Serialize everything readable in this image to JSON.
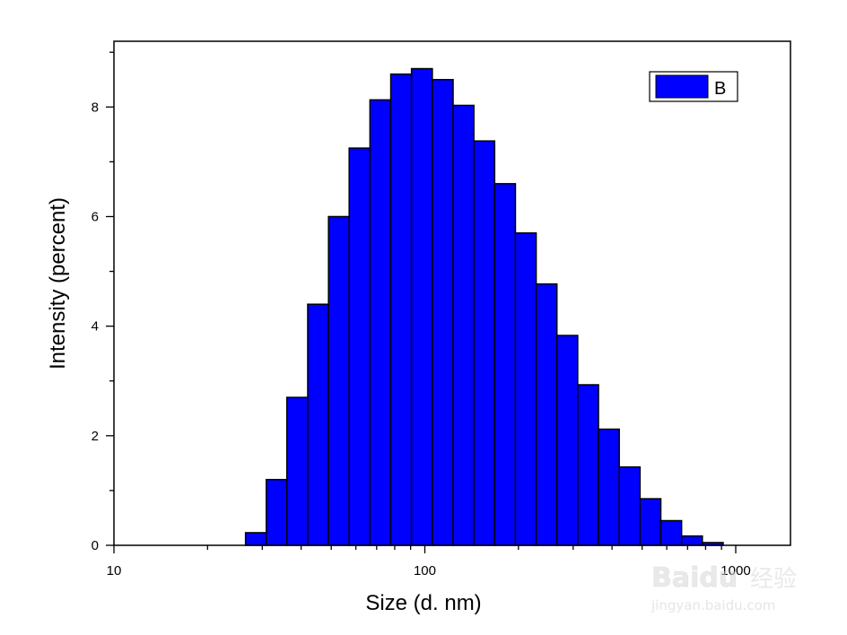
{
  "chart_data": {
    "type": "bar",
    "xlabel": "Size (d. nm)",
    "ylabel": "Intensity (percent)",
    "x_scale": "log",
    "xlim": [
      10,
      1500
    ],
    "ylim": [
      0,
      9.2
    ],
    "x_ticks": [
      10,
      100,
      1000
    ],
    "x_tick_labels": [
      "10",
      "100",
      "1000"
    ],
    "y_ticks": [
      0,
      2,
      4,
      6,
      8
    ],
    "y_tick_labels": [
      "0",
      "2",
      "4",
      "6",
      "8"
    ],
    "legend": {
      "position": "top-right",
      "entries": [
        "B"
      ]
    },
    "grid": false,
    "bar_color": "#0000ff",
    "bins": [
      {
        "x0": 26.5,
        "x1": 30.9,
        "value": 0.23
      },
      {
        "x0": 30.9,
        "x1": 36.0,
        "value": 1.2
      },
      {
        "x0": 36.0,
        "x1": 42.0,
        "value": 2.7
      },
      {
        "x0": 42.0,
        "x1": 49.0,
        "value": 4.4
      },
      {
        "x0": 49.0,
        "x1": 57.1,
        "value": 6.0
      },
      {
        "x0": 57.1,
        "x1": 66.6,
        "value": 7.25
      },
      {
        "x0": 66.6,
        "x1": 77.7,
        "value": 8.13
      },
      {
        "x0": 77.7,
        "x1": 90.6,
        "value": 8.6
      },
      {
        "x0": 90.6,
        "x1": 105.7,
        "value": 8.7
      },
      {
        "x0": 105.7,
        "x1": 123.3,
        "value": 8.5
      },
      {
        "x0": 123.3,
        "x1": 143.8,
        "value": 8.03
      },
      {
        "x0": 143.8,
        "x1": 167.7,
        "value": 7.38
      },
      {
        "x0": 167.7,
        "x1": 195.6,
        "value": 6.6
      },
      {
        "x0": 195.6,
        "x1": 228.1,
        "value": 5.7
      },
      {
        "x0": 228.1,
        "x1": 266.0,
        "value": 4.77
      },
      {
        "x0": 266.0,
        "x1": 310.3,
        "value": 3.83
      },
      {
        "x0": 310.3,
        "x1": 361.9,
        "value": 2.93
      },
      {
        "x0": 361.9,
        "x1": 422.1,
        "value": 2.12
      },
      {
        "x0": 422.1,
        "x1": 492.3,
        "value": 1.43
      },
      {
        "x0": 492.3,
        "x1": 574.2,
        "value": 0.85
      },
      {
        "x0": 574.2,
        "x1": 669.7,
        "value": 0.45
      },
      {
        "x0": 669.7,
        "x1": 781.1,
        "value": 0.17
      },
      {
        "x0": 781.1,
        "x1": 911.0,
        "value": 0.05
      }
    ]
  },
  "watermark": {
    "brand": "Baidu",
    "brand_cn": "经验",
    "url": "jingyan.baidu.com"
  }
}
